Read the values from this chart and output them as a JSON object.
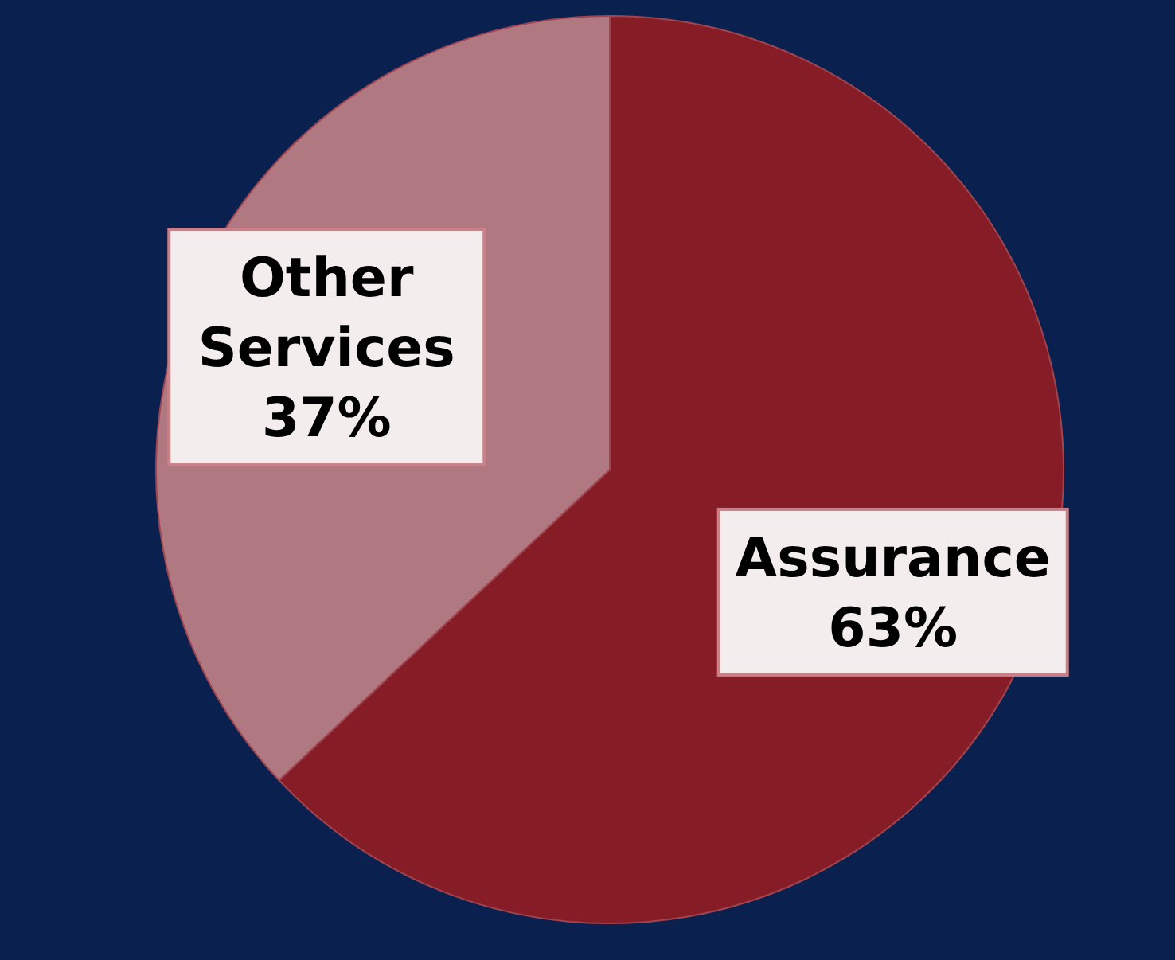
{
  "chart_data": {
    "type": "pie",
    "categories": [
      "Assurance",
      "Other Services"
    ],
    "values": [
      63,
      37
    ],
    "colors": [
      "#861c26",
      "#b07880"
    ],
    "value_labels": [
      "63%",
      "37%"
    ]
  }
}
